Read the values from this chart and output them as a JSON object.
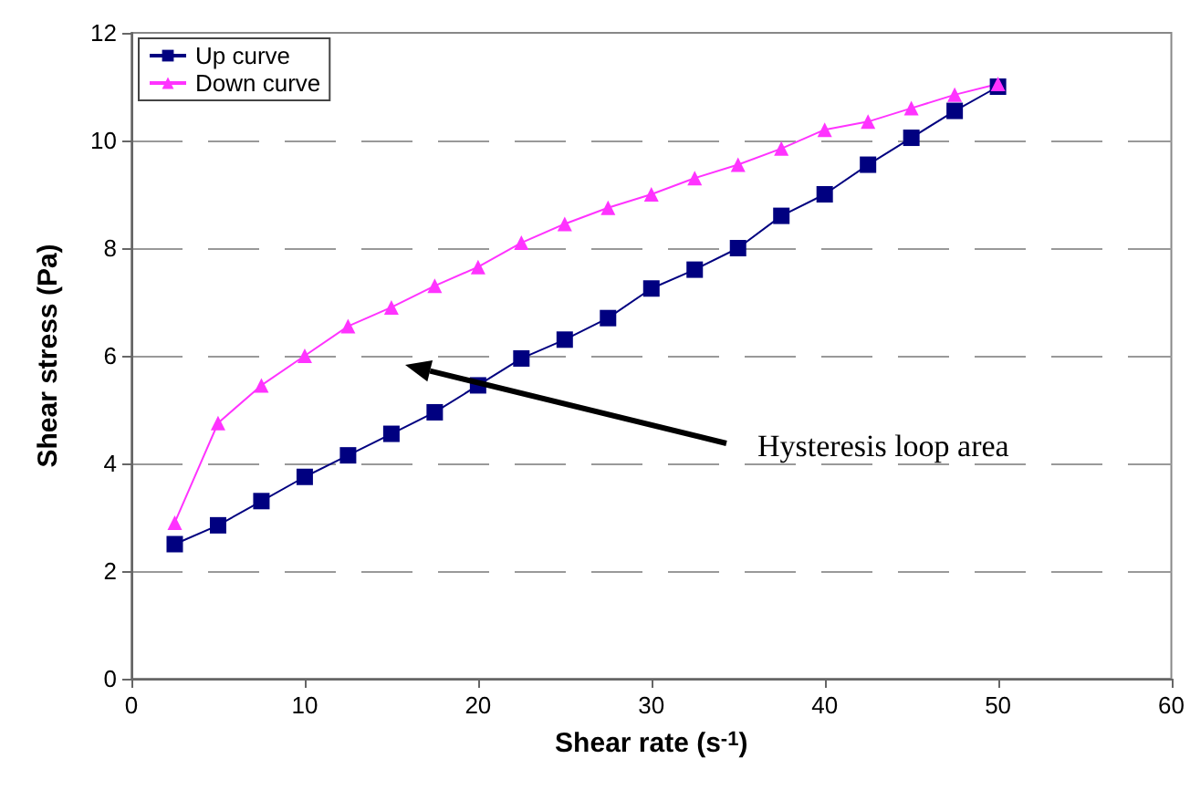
{
  "chart_data": {
    "type": "line",
    "xlabel": "Shear rate (s$^{-1}$)",
    "ylabel": "Shear stress (Pa)",
    "x": [
      2.5,
      5,
      7.5,
      10,
      12.5,
      15,
      17.5,
      20,
      22.5,
      25,
      27.5,
      30,
      32.5,
      35,
      37.5,
      40,
      42.5,
      45,
      47.5,
      50
    ],
    "series": [
      {
        "name": "Up curve",
        "color": "#000080",
        "marker": "square",
        "values": [
          2.5,
          2.85,
          3.3,
          3.75,
          4.15,
          4.55,
          4.95,
          5.45,
          5.95,
          6.3,
          6.7,
          7.25,
          7.6,
          8.0,
          8.6,
          9.0,
          9.55,
          10.05,
          10.55,
          11.0
        ]
      },
      {
        "name": "Down curve",
        "color": "#ff33ff",
        "marker": "triangle",
        "values": [
          2.9,
          4.75,
          5.45,
          6.0,
          6.55,
          6.9,
          7.3,
          7.65,
          8.1,
          8.45,
          8.75,
          9.0,
          9.3,
          9.55,
          9.85,
          10.2,
          10.35,
          10.6,
          10.85,
          11.05
        ]
      }
    ],
    "xlim": [
      0,
      60
    ],
    "xticks": [
      0,
      10,
      20,
      30,
      40,
      50,
      60
    ],
    "ylim": [
      0,
      12
    ],
    "yticks": [
      0,
      2,
      4,
      6,
      8,
      10,
      12
    ],
    "grid": "y",
    "legend": "top left",
    "line_style": "solid",
    "annotations": [
      "Hysteresis loop area"
    ]
  }
}
